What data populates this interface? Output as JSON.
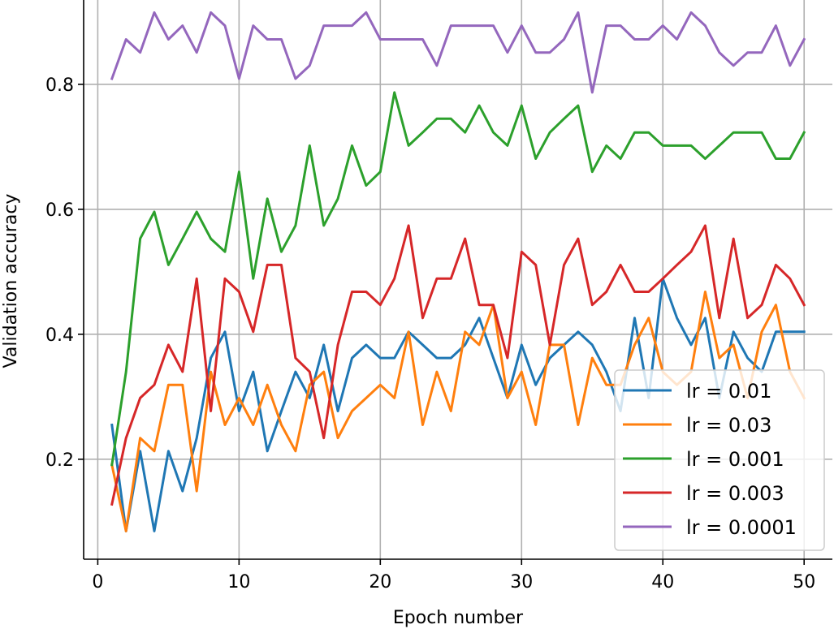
{
  "chart_data": {
    "type": "line",
    "xlabel": "Epoch number",
    "ylabel": "Validation accuracy",
    "xlim": [
      -1,
      52
    ],
    "ylim": [
      0.04,
      0.935
    ],
    "xticks": [
      0,
      10,
      20,
      30,
      40,
      50
    ],
    "yticks": [
      0.2,
      0.4,
      0.6,
      0.8
    ],
    "ytick_labels": [
      "0.2",
      "0.4",
      "0.6",
      "0.8"
    ],
    "grid": true,
    "legend_position": "lower-right",
    "x": [
      1,
      2,
      3,
      4,
      5,
      6,
      7,
      8,
      9,
      10,
      11,
      12,
      13,
      14,
      15,
      16,
      17,
      18,
      19,
      20,
      21,
      22,
      23,
      24,
      25,
      26,
      27,
      28,
      29,
      30,
      31,
      32,
      33,
      34,
      35,
      36,
      37,
      38,
      39,
      40,
      41,
      42,
      43,
      44,
      45,
      46,
      47,
      48,
      49,
      50
    ],
    "series": [
      {
        "name": "lr = 0.01",
        "color": "#1f77b4",
        "values": [
          0.255,
          0.085,
          0.213,
          0.085,
          0.213,
          0.149,
          0.234,
          0.362,
          0.404,
          0.277,
          0.34,
          0.213,
          0.277,
          0.34,
          0.298,
          0.383,
          0.277,
          0.362,
          0.383,
          0.362,
          0.362,
          0.404,
          0.383,
          0.362,
          0.362,
          0.383,
          0.426,
          0.362,
          0.298,
          0.383,
          0.319,
          0.362,
          0.383,
          0.404,
          0.383,
          0.34,
          0.277,
          0.426,
          0.298,
          0.489,
          0.426,
          0.383,
          0.426,
          0.298,
          0.404,
          0.362,
          0.34,
          0.404,
          0.404,
          0.404
        ]
      },
      {
        "name": "lr = 0.03",
        "color": "#ff7f0e",
        "values": [
          0.191,
          0.085,
          0.234,
          0.213,
          0.319,
          0.319,
          0.149,
          0.34,
          0.255,
          0.298,
          0.255,
          0.319,
          0.255,
          0.213,
          0.319,
          0.34,
          0.234,
          0.277,
          0.298,
          0.319,
          0.298,
          0.404,
          0.255,
          0.34,
          0.277,
          0.404,
          0.383,
          0.447,
          0.298,
          0.34,
          0.255,
          0.383,
          0.383,
          0.255,
          0.362,
          0.319,
          0.319,
          0.383,
          0.426,
          0.34,
          0.319,
          0.34,
          0.468,
          0.362,
          0.383,
          0.298,
          0.404,
          0.447,
          0.34,
          0.298
        ]
      },
      {
        "name": "lr = 0.001",
        "color": "#2ca02c",
        "values": [
          0.191,
          0.34,
          0.553,
          0.596,
          0.511,
          0.553,
          0.596,
          0.553,
          0.532,
          0.66,
          0.489,
          0.617,
          0.532,
          0.574,
          0.702,
          0.574,
          0.617,
          0.702,
          0.638,
          0.66,
          0.787,
          0.702,
          0.723,
          0.745,
          0.745,
          0.723,
          0.766,
          0.723,
          0.702,
          0.766,
          0.681,
          0.723,
          0.745,
          0.766,
          0.66,
          0.702,
          0.681,
          0.723,
          0.723,
          0.702,
          0.702,
          0.702,
          0.681,
          0.702,
          0.723,
          0.723,
          0.723,
          0.681,
          0.681,
          0.723
        ]
      },
      {
        "name": "lr = 0.003",
        "color": "#d62728",
        "values": [
          0.128,
          0.234,
          0.298,
          0.319,
          0.383,
          0.34,
          0.489,
          0.277,
          0.489,
          0.468,
          0.404,
          0.511,
          0.511,
          0.362,
          0.34,
          0.234,
          0.383,
          0.468,
          0.468,
          0.447,
          0.489,
          0.574,
          0.426,
          0.489,
          0.489,
          0.553,
          0.447,
          0.447,
          0.362,
          0.532,
          0.511,
          0.383,
          0.511,
          0.553,
          0.447,
          0.468,
          0.511,
          0.468,
          0.468,
          0.489,
          0.511,
          0.532,
          0.574,
          0.426,
          0.553,
          0.426,
          0.447,
          0.511,
          0.489,
          0.447
        ]
      },
      {
        "name": "lr = 0.0001",
        "color": "#9467bd",
        "values": [
          0.809,
          0.872,
          0.851,
          0.915,
          0.872,
          0.894,
          0.851,
          0.915,
          0.894,
          0.809,
          0.894,
          0.872,
          0.872,
          0.809,
          0.83,
          0.894,
          0.894,
          0.894,
          0.915,
          0.872,
          0.872,
          0.872,
          0.872,
          0.83,
          0.894,
          0.894,
          0.894,
          0.894,
          0.851,
          0.894,
          0.851,
          0.851,
          0.872,
          0.915,
          0.787,
          0.894,
          0.894,
          0.872,
          0.872,
          0.894,
          0.872,
          0.915,
          0.894,
          0.851,
          0.83,
          0.851,
          0.851,
          0.894,
          0.83,
          0.872
        ]
      }
    ]
  }
}
